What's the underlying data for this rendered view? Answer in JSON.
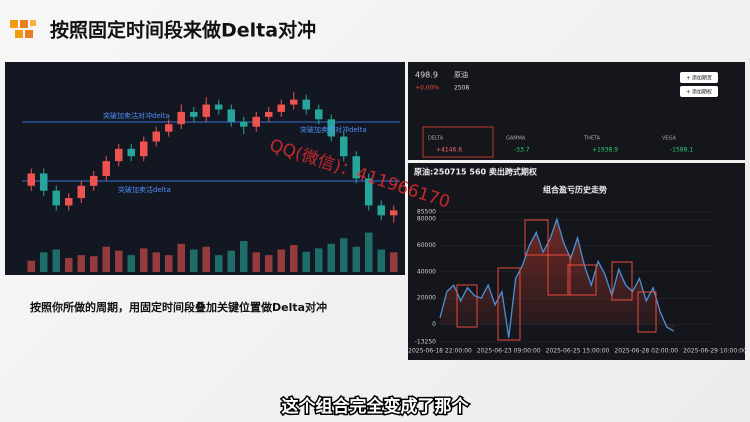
{
  "header": {
    "title": "按照固定时间段来做Delta对冲"
  },
  "left_panel": {
    "annotations": [
      "突破加卖沽对冲delta",
      "突破加卖购对冲delta",
      "突破加卖沽delta"
    ],
    "chart_data": {
      "type": "candlestick",
      "open": [
        500,
        505,
        498,
        492,
        495,
        500,
        504,
        510,
        515,
        512,
        518,
        522,
        525,
        530,
        528,
        533,
        531,
        526,
        524,
        528,
        530,
        533,
        535,
        531,
        527,
        520,
        512,
        503,
        492,
        488
      ],
      "close": [
        505,
        498,
        492,
        495,
        500,
        504,
        510,
        515,
        512,
        518,
        522,
        525,
        530,
        528,
        533,
        531,
        526,
        524,
        528,
        530,
        533,
        535,
        531,
        527,
        520,
        512,
        503,
        492,
        488,
        490
      ],
      "high": [
        507,
        507,
        500,
        497,
        502,
        506,
        512,
        517,
        517,
        520,
        524,
        527,
        533,
        532,
        536,
        535,
        533,
        528,
        530,
        532,
        535,
        538,
        537,
        533,
        529,
        522,
        514,
        505,
        494,
        492
      ],
      "low": [
        498,
        496,
        490,
        490,
        493,
        498,
        502,
        508,
        510,
        510,
        516,
        520,
        523,
        526,
        526,
        529,
        524,
        521,
        522,
        526,
        528,
        531,
        529,
        525,
        518,
        510,
        501,
        490,
        486,
        485
      ],
      "volume": [
        20,
        35,
        40,
        25,
        30,
        28,
        45,
        38,
        30,
        42,
        35,
        30,
        50,
        40,
        45,
        30,
        38,
        55,
        35,
        30,
        40,
        48,
        36,
        42,
        50,
        60,
        45,
        70,
        40,
        35
      ],
      "ylim": [
        480,
        545
      ],
      "volume_lim": [
        0,
        80
      ],
      "up_color": "#ef5350",
      "down_color": "#26a69a"
    },
    "caption": "按照你所做的周期，用固定时间段叠加关键位置做Delta对冲"
  },
  "right_top": {
    "price": "498.9",
    "change": "+0.00%",
    "name": "原油",
    "contract": "2508",
    "buttons": [
      "+ 添加期货",
      "+ 添加期权"
    ],
    "greeks": [
      {
        "name": "DELTA",
        "value": "+4146.6"
      },
      {
        "name": "GAMMA",
        "value": "-33.7"
      },
      {
        "name": "THETA",
        "value": "+1938.9"
      },
      {
        "name": "VEGA",
        "value": "-1588.1"
      }
    ]
  },
  "right_chart": {
    "header": "原油:250715 560 卖出跨式期权",
    "chart_data": {
      "type": "line",
      "title": "组合盈亏历史走势",
      "categories": [
        "2025-06-18 22:00:00",
        null,
        null,
        null,
        null,
        null,
        null,
        null,
        null,
        null,
        "2025-06-23 09:00:00",
        null,
        null,
        null,
        null,
        null,
        null,
        null,
        null,
        null,
        "2025-06-25 15:00:00",
        null,
        null,
        null,
        null,
        null,
        null,
        null,
        null,
        null,
        "2025-06-28 02:00:00",
        null,
        null,
        null,
        null,
        null,
        null,
        null,
        null,
        null,
        "2025-06-29 10:00:00"
      ],
      "series": [
        {
          "name": "组合盈亏",
          "color": "#4a90d9",
          "values": [
            5000,
            25000,
            30000,
            18000,
            28000,
            22000,
            20000,
            30000,
            15000,
            25000,
            -10000,
            35000,
            45000,
            60000,
            70000,
            55000,
            65000,
            80000,
            62000,
            50000,
            66000,
            45000,
            30000,
            48000,
            38000,
            22000,
            42000,
            30000,
            25000,
            35000,
            18000,
            28000,
            10000,
            -2000,
            -5000,
            null,
            null,
            null,
            null,
            null,
            null
          ]
        }
      ],
      "ylim": [
        -13250,
        85500
      ],
      "yticks": [
        -13250,
        0,
        20000,
        40000,
        60000,
        80000,
        85500
      ]
    }
  },
  "watermark": "QQ(微信)：411966170",
  "subtitle": "这个组合完全变成了那个"
}
